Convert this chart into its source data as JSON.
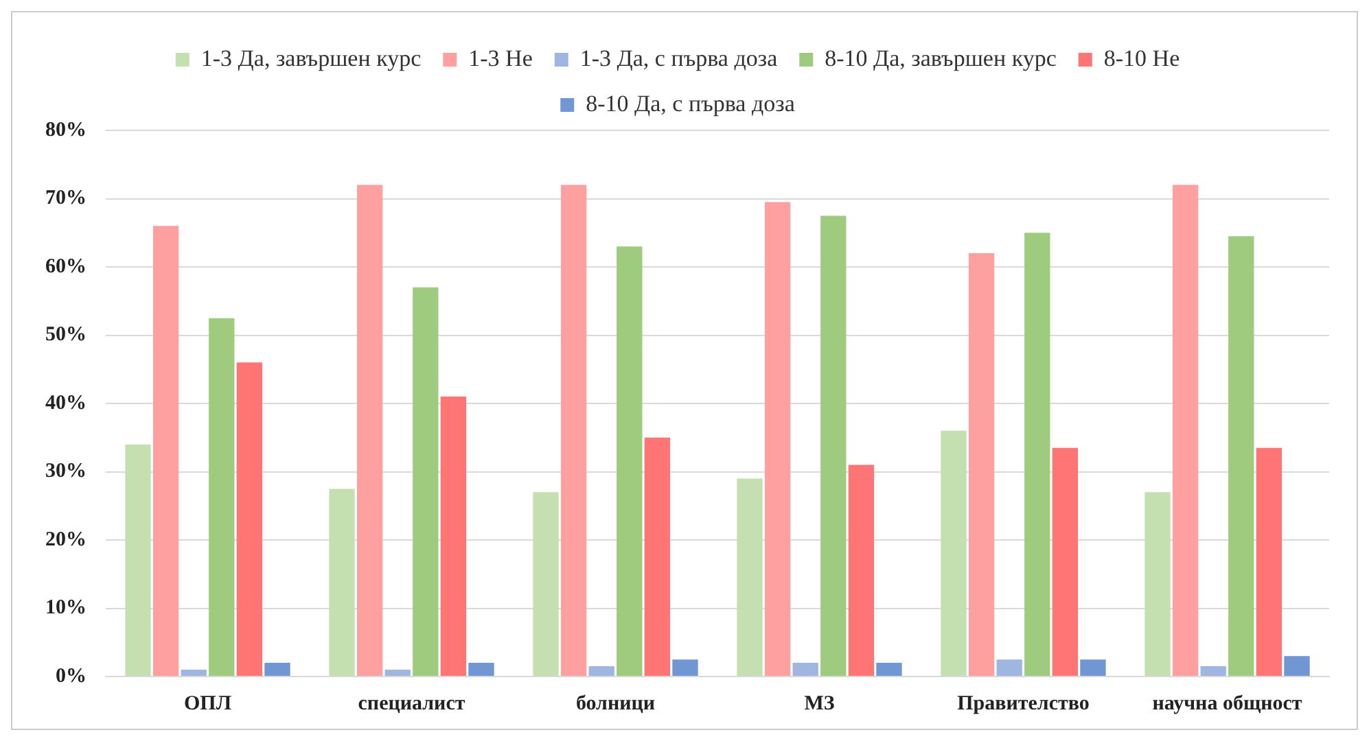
{
  "chart_data": {
    "type": "bar",
    "categories": [
      "ОПЛ",
      "специалист",
      "болници",
      "МЗ",
      "Правителство",
      "научна общност"
    ],
    "series": [
      {
        "name": "1-3 Да, завършен курс",
        "color": "#c5e0b0",
        "values": [
          34,
          27.5,
          27,
          29,
          36,
          27
        ]
      },
      {
        "name": "1-3 Не",
        "color": "#ffa0a0",
        "values": [
          66,
          72,
          72,
          69.5,
          62,
          72
        ]
      },
      {
        "name": "1-3 Да, с първа доза",
        "color": "#9fb6e0",
        "values": [
          1,
          1,
          1.5,
          2,
          2.5,
          1.5
        ]
      },
      {
        "name": "8-10 Да, завършен курс",
        "color": "#9fcb7f",
        "values": [
          52.5,
          57,
          63,
          67.5,
          65,
          64.5
        ]
      },
      {
        "name": "8-10 Не",
        "color": "#ff7575",
        "values": [
          46,
          41,
          35,
          31,
          33.5,
          33.5
        ]
      },
      {
        "name": "8-10 Да, с първа доза",
        "color": "#7096d4",
        "values": [
          2,
          2,
          2.5,
          2,
          2.5,
          3
        ]
      }
    ],
    "ylim": [
      0,
      80
    ],
    "yticks": [
      {
        "value": 0,
        "label": "0%"
      },
      {
        "value": 10,
        "label": "10%"
      },
      {
        "value": 20,
        "label": "20%"
      },
      {
        "value": 30,
        "label": "30%"
      },
      {
        "value": 40,
        "label": "40%"
      },
      {
        "value": 50,
        "label": "50%"
      },
      {
        "value": 60,
        "label": "60%"
      },
      {
        "value": 70,
        "label": "70%"
      },
      {
        "value": 80,
        "label": "80%"
      }
    ],
    "grid": "y",
    "legend": "top"
  }
}
